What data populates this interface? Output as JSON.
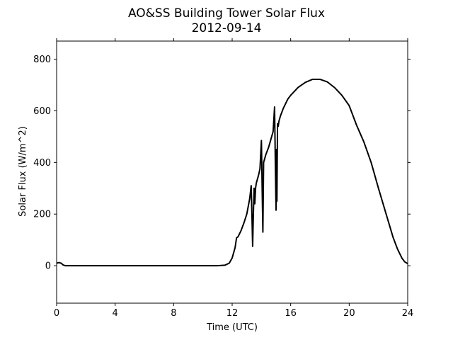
{
  "chart_data": {
    "type": "line",
    "title": "AO&SS Building Tower Solar Flux",
    "subtitle": "2012-09-14",
    "xlabel": "Time (UTC)",
    "ylabel": "Solar Flux (W/m^2)",
    "xlim": [
      0,
      24
    ],
    "ylim": [
      -145,
      870
    ],
    "xticks": [
      0,
      4,
      8,
      12,
      16,
      20,
      24
    ],
    "yticks": [
      0,
      200,
      400,
      600,
      800
    ],
    "grid": false,
    "legend": "none",
    "line_color": "#000000",
    "series": [
      {
        "x": [
          0,
          0.15,
          0.3,
          0.45,
          0.6,
          1,
          2,
          4,
          6,
          8,
          10,
          11,
          11.5,
          11.8,
          12.0,
          12.2,
          12.3,
          12.4,
          12.6,
          12.8,
          13.0,
          13.1,
          13.2,
          13.3,
          13.35,
          13.4,
          13.45,
          13.5,
          13.55,
          13.6,
          13.65,
          13.7,
          13.75,
          13.8,
          13.9,
          14.0,
          14.05,
          14.1,
          14.15,
          14.2,
          14.25,
          14.3,
          14.4,
          14.5,
          14.6,
          14.7,
          14.8,
          14.9,
          14.95,
          15.0,
          15.03,
          15.06,
          15.1,
          15.15,
          15.2,
          15.3,
          15.5,
          15.8,
          16.0,
          16.5,
          17.0,
          17.5,
          18.0,
          18.5,
          19.0,
          19.5,
          20.0,
          20.5,
          21.0,
          21.5,
          22.0,
          22.5,
          23.0,
          23.3,
          23.6,
          23.8,
          24.0
        ],
        "y": [
          10,
          12,
          10,
          3,
          0,
          0,
          0,
          0,
          0,
          0,
          0,
          0,
          2,
          10,
          30,
          70,
          108,
          112,
          135,
          165,
          200,
          230,
          260,
          310,
          200,
          75,
          200,
          300,
          240,
          300,
          320,
          330,
          340,
          350,
          375,
          485,
          300,
          130,
          400,
          410,
          420,
          430,
          445,
          460,
          480,
          500,
          520,
          615,
          400,
          215,
          450,
          250,
          550,
          540,
          560,
          580,
          610,
          645,
          660,
          690,
          710,
          722,
          722,
          712,
          690,
          660,
          620,
          545,
          480,
          400,
          300,
          205,
          110,
          65,
          30,
          15,
          8
        ]
      }
    ]
  }
}
